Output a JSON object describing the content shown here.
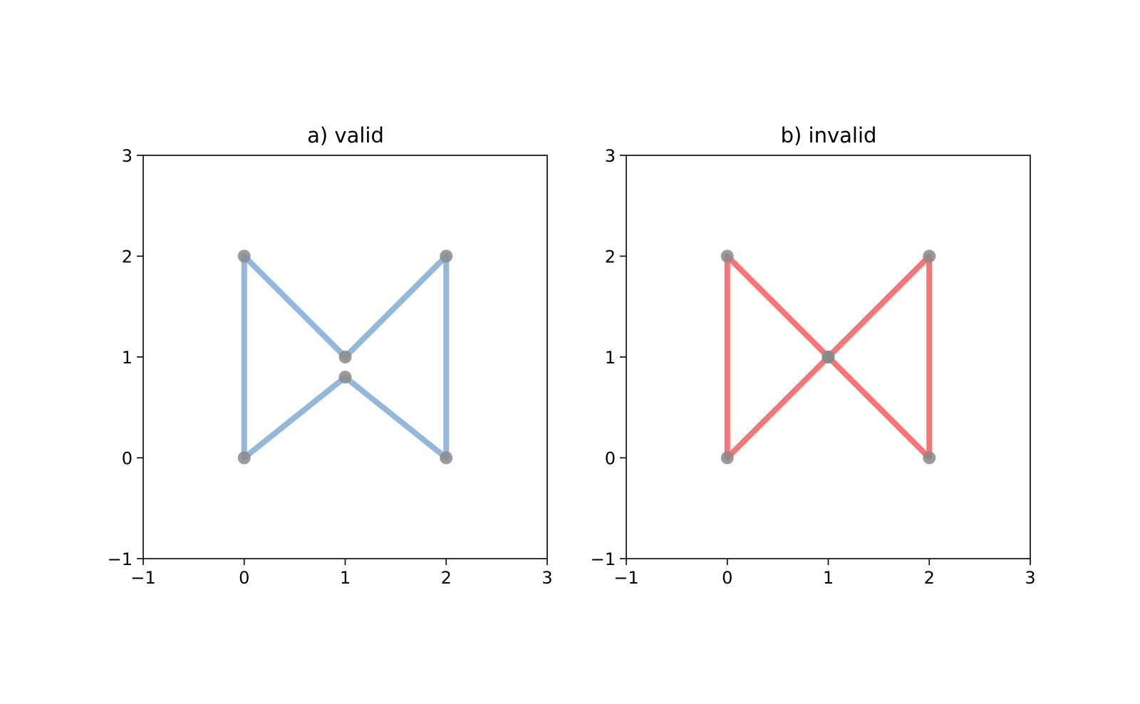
{
  "chart_data": [
    {
      "type": "line",
      "title": "a) valid",
      "xlim": [
        -1,
        3
      ],
      "ylim": [
        -1,
        3
      ],
      "xticks": [
        -1,
        0,
        1,
        2,
        3
      ],
      "yticks": [
        -1,
        0,
        1,
        2,
        3
      ],
      "xtick_labels": [
        "−1",
        "0",
        "1",
        "2",
        "3"
      ],
      "ytick_labels": [
        "−1",
        "0",
        "1",
        "2",
        "3"
      ],
      "grid": false,
      "series": [
        {
          "color": "#94b8db",
          "points": [
            [
              0,
              0
            ],
            [
              0,
              2
            ],
            [
              1,
              1
            ],
            [
              2,
              2
            ],
            [
              2,
              0
            ],
            [
              1,
              0.8
            ],
            [
              0,
              0
            ]
          ]
        }
      ],
      "vertices": [
        [
          0,
          0
        ],
        [
          0,
          2
        ],
        [
          1,
          1
        ],
        [
          2,
          2
        ],
        [
          2,
          0
        ],
        [
          1,
          0.8
        ]
      ],
      "vertex_color": "#8a8a8a"
    },
    {
      "type": "line",
      "title": "b) invalid",
      "xlim": [
        -1,
        3
      ],
      "ylim": [
        -1,
        3
      ],
      "xticks": [
        -1,
        0,
        1,
        2,
        3
      ],
      "yticks": [
        -1,
        0,
        1,
        2,
        3
      ],
      "xtick_labels": [
        "−1",
        "0",
        "1",
        "2",
        "3"
      ],
      "ytick_labels": [
        "−1",
        "0",
        "1",
        "2",
        "3"
      ],
      "grid": false,
      "series": [
        {
          "color": "#f47676",
          "points": [
            [
              0,
              0
            ],
            [
              0,
              2
            ],
            [
              1,
              1
            ],
            [
              2,
              2
            ],
            [
              2,
              0
            ],
            [
              1,
              1
            ],
            [
              0,
              0
            ]
          ]
        }
      ],
      "vertices": [
        [
          0,
          0
        ],
        [
          0,
          2
        ],
        [
          1,
          1
        ],
        [
          2,
          2
        ],
        [
          2,
          0
        ],
        [
          1,
          1
        ]
      ],
      "vertex_color": "#8a8a8a"
    }
  ]
}
